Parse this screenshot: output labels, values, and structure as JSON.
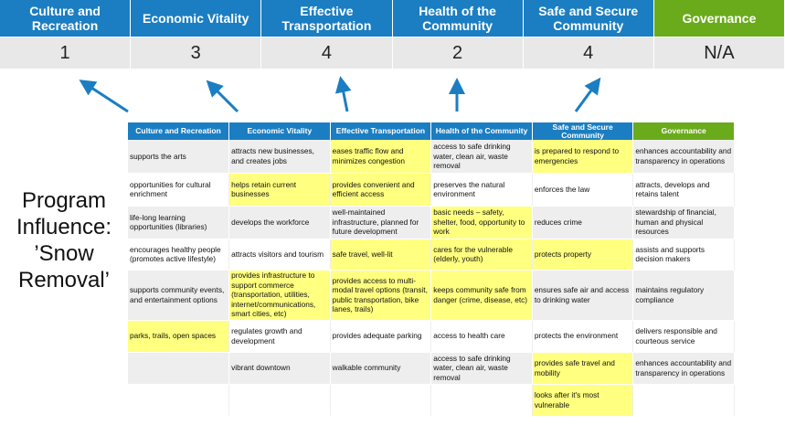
{
  "summary": {
    "headers": [
      "Culture and Recreation",
      "Economic Vitality",
      "Effective Transportation",
      "Health of the Community",
      "Safe and Secure Community",
      "Governance"
    ],
    "scores": [
      "1",
      "3",
      "4",
      "2",
      "4",
      "N/A"
    ]
  },
  "side_label": {
    "line1": "Program",
    "line2": "Influence:",
    "line3": "’Snow",
    "line4": "Removal’"
  },
  "colors": {
    "header_blue": "#1b7ec2",
    "governance_green": "#6aab1c",
    "highlight_yellow": "#ffff80",
    "arrow": "#1b7ec2"
  },
  "table": {
    "headers": [
      "Culture and Recreation",
      "Economic Vitality",
      "Effective Transportation",
      "Health of the Community",
      "Safe and Secure Community",
      "Governance"
    ],
    "rows": [
      {
        "cells": [
          "supports the arts",
          "attracts new businesses, and creates jobs",
          "eases traffic flow and minimizes congestion",
          "access to safe drinking water, clean air, waste removal",
          "is prepared to respond to emergencies",
          "enhances accountability and transparency in operations"
        ],
        "highlight": [
          false,
          false,
          true,
          false,
          true,
          false
        ]
      },
      {
        "cells": [
          "opportunities for cultural enrichment",
          "helps retain current businesses",
          "provides convenient and efficient access",
          "preserves the natural environment",
          "enforces the law",
          "attracts, develops and retains talent"
        ],
        "highlight": [
          false,
          true,
          true,
          false,
          false,
          false
        ]
      },
      {
        "cells": [
          "life-long learning opportunities (libraries)",
          "develops the workforce",
          "well-maintained infrastructure, planned for future development",
          "basic needs – safety, shelter, food, opportunity to work",
          "reduces crime",
          "stewardship of financial, human and physical resources"
        ],
        "highlight": [
          false,
          false,
          false,
          true,
          false,
          false
        ]
      },
      {
        "cells": [
          "encourages healthy people (promotes active lifestyle)",
          "attracts visitors and tourism",
          "safe travel, well-lit",
          "cares for the vulnerable (elderly, youth)",
          "protects property",
          "assists and supports decision makers"
        ],
        "highlight": [
          false,
          false,
          true,
          true,
          true,
          false
        ]
      },
      {
        "cells": [
          "supports community events, and entertainment options",
          "provides infrastructure to support commerce (transportation, utilities, internet/communications, smart cities, etc)",
          "provides access to multi-modal travel options (transit, public transportation, bike lanes, trails)",
          "keeps community safe from danger (crime, disease, etc)",
          "ensures safe air and access to drinking water",
          "maintains regulatory compliance"
        ],
        "highlight": [
          false,
          true,
          true,
          true,
          false,
          false
        ]
      },
      {
        "cells": [
          "parks, trails, open spaces",
          "regulates growth and development",
          "provides adequate parking",
          "access to health care",
          "protects the environment",
          "delivers responsible and courteous service"
        ],
        "highlight": [
          true,
          false,
          false,
          false,
          false,
          false
        ]
      },
      {
        "cells": [
          "",
          "vibrant downtown",
          "walkable community",
          "access to safe drinking water, clean air, waste removal",
          "provides safe travel and mobility",
          "enhances accountability and transparency in operations"
        ],
        "highlight": [
          false,
          false,
          false,
          false,
          true,
          false
        ]
      },
      {
        "cells": [
          "",
          "",
          "",
          "",
          "looks after it's most vulnerable",
          ""
        ],
        "highlight": [
          false,
          false,
          false,
          false,
          true,
          false
        ]
      }
    ]
  }
}
